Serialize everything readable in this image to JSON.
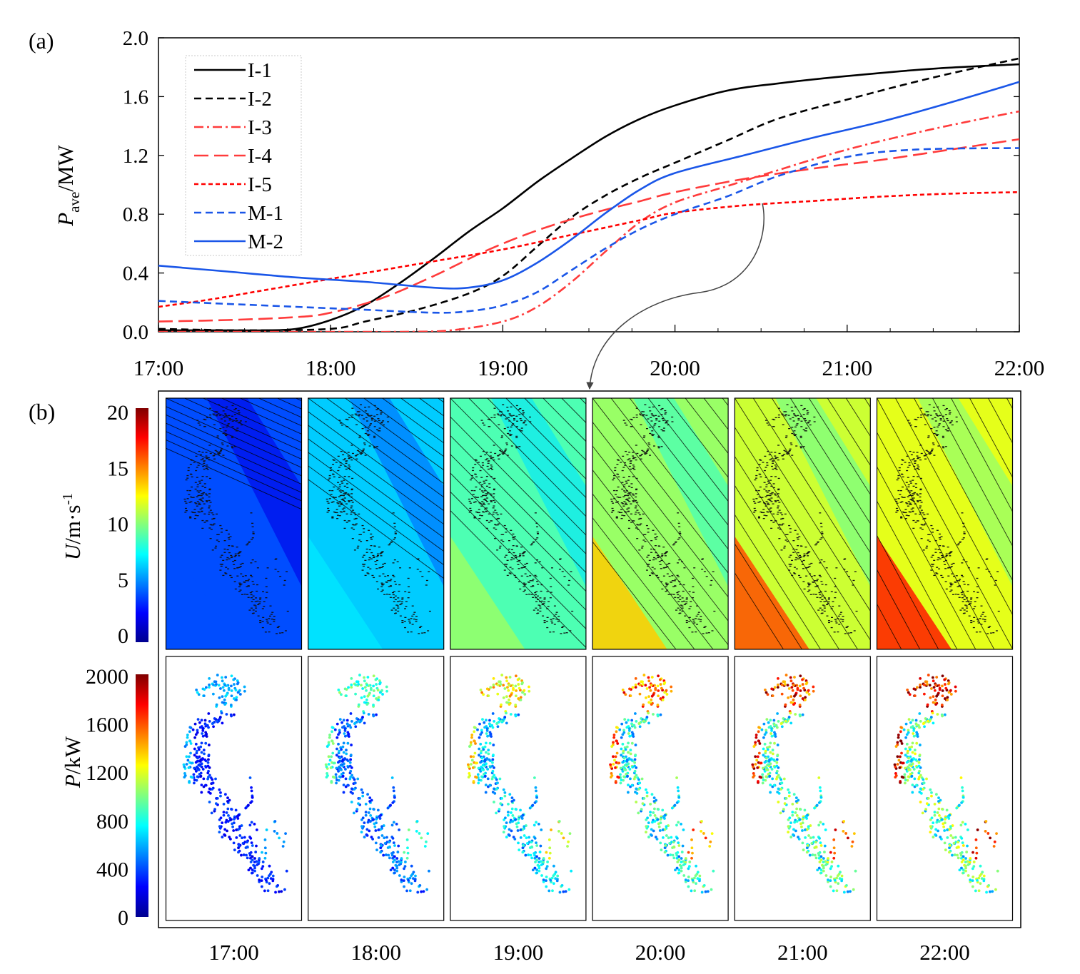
{
  "panel_labels": {
    "a": "(a)",
    "b": "(b)"
  },
  "chart_data": [
    {
      "type": "line",
      "panel": "(a)",
      "xlabel": "",
      "ylabel": "P",
      "ylabel_sub": "ave",
      "ylabel_unit": "/MW",
      "x_ticks": [
        "17:00",
        "18:00",
        "19:00",
        "20:00",
        "21:00",
        "22:00"
      ],
      "y_ticks": [
        "0.0",
        "0.4",
        "0.8",
        "1.2",
        "1.6",
        "2.0"
      ],
      "xlim": [
        17,
        22
      ],
      "ylim": [
        0,
        2.0
      ],
      "x_minor_step": 0.25,
      "legend_position": "top-left",
      "series": [
        {
          "name": "I-1",
          "color": "#000000",
          "dash": "solid",
          "points": [
            [
              17,
              0.01
            ],
            [
              17.4,
              0.01
            ],
            [
              17.6,
              0.01
            ],
            [
              17.8,
              0.02
            ],
            [
              18.0,
              0.08
            ],
            [
              18.2,
              0.18
            ],
            [
              18.4,
              0.33
            ],
            [
              18.6,
              0.5
            ],
            [
              18.8,
              0.68
            ],
            [
              19.0,
              0.84
            ],
            [
              19.2,
              1.02
            ],
            [
              19.4,
              1.18
            ],
            [
              19.6,
              1.33
            ],
            [
              19.8,
              1.45
            ],
            [
              20.0,
              1.54
            ],
            [
              20.3,
              1.64
            ],
            [
              20.6,
              1.69
            ],
            [
              21.0,
              1.74
            ],
            [
              21.5,
              1.79
            ],
            [
              22.0,
              1.82
            ]
          ]
        },
        {
          "name": "I-2",
          "color": "#000000",
          "dash": "dashed",
          "points": [
            [
              17,
              0.02
            ],
            [
              17.5,
              0.01
            ],
            [
              18.0,
              0.02
            ],
            [
              18.2,
              0.07
            ],
            [
              18.5,
              0.15
            ],
            [
              18.8,
              0.26
            ],
            [
              19.0,
              0.38
            ],
            [
              19.2,
              0.58
            ],
            [
              19.4,
              0.78
            ],
            [
              19.6,
              0.93
            ],
            [
              19.8,
              1.05
            ],
            [
              20.0,
              1.15
            ],
            [
              20.3,
              1.3
            ],
            [
              20.6,
              1.45
            ],
            [
              21.0,
              1.58
            ],
            [
              21.5,
              1.73
            ],
            [
              22.0,
              1.86
            ]
          ]
        },
        {
          "name": "I-3",
          "color": "#ff3b3b",
          "dash": "dashdot",
          "points": [
            [
              17,
              0.0
            ],
            [
              18.0,
              0.0
            ],
            [
              18.4,
              0.0
            ],
            [
              18.7,
              0.01
            ],
            [
              19.0,
              0.07
            ],
            [
              19.2,
              0.17
            ],
            [
              19.4,
              0.34
            ],
            [
              19.6,
              0.55
            ],
            [
              19.8,
              0.75
            ],
            [
              20.0,
              0.88
            ],
            [
              20.3,
              0.99
            ],
            [
              20.6,
              1.1
            ],
            [
              21.0,
              1.24
            ],
            [
              21.5,
              1.38
            ],
            [
              22.0,
              1.5
            ]
          ]
        },
        {
          "name": "I-4",
          "color": "#ff3b3b",
          "dash": "longdash",
          "points": [
            [
              17,
              0.07
            ],
            [
              17.4,
              0.08
            ],
            [
              17.8,
              0.1
            ],
            [
              18.0,
              0.13
            ],
            [
              18.3,
              0.23
            ],
            [
              18.6,
              0.38
            ],
            [
              18.9,
              0.55
            ],
            [
              19.2,
              0.69
            ],
            [
              19.5,
              0.8
            ],
            [
              19.8,
              0.89
            ],
            [
              20.0,
              0.95
            ],
            [
              20.4,
              1.04
            ],
            [
              20.8,
              1.11
            ],
            [
              21.2,
              1.17
            ],
            [
              21.6,
              1.24
            ],
            [
              22.0,
              1.31
            ]
          ]
        },
        {
          "name": "I-5",
          "color": "#ff0000",
          "dash": "shortdash",
          "points": [
            [
              17,
              0.17
            ],
            [
              17.3,
              0.22
            ],
            [
              17.6,
              0.28
            ],
            [
              18.0,
              0.36
            ],
            [
              18.3,
              0.42
            ],
            [
              18.6,
              0.48
            ],
            [
              19.0,
              0.56
            ],
            [
              19.4,
              0.66
            ],
            [
              19.8,
              0.76
            ],
            [
              20.0,
              0.81
            ],
            [
              20.4,
              0.86
            ],
            [
              20.8,
              0.89
            ],
            [
              21.2,
              0.92
            ],
            [
              21.6,
              0.94
            ],
            [
              22.0,
              0.95
            ]
          ]
        },
        {
          "name": "M-1",
          "color": "#1a56e8",
          "dash": "dashed",
          "points": [
            [
              17,
              0.21
            ],
            [
              17.4,
              0.19
            ],
            [
              17.8,
              0.17
            ],
            [
              18.2,
              0.15
            ],
            [
              18.6,
              0.13
            ],
            [
              18.8,
              0.14
            ],
            [
              19.0,
              0.18
            ],
            [
              19.2,
              0.27
            ],
            [
              19.4,
              0.42
            ],
            [
              19.6,
              0.57
            ],
            [
              19.8,
              0.7
            ],
            [
              20.0,
              0.8
            ],
            [
              20.3,
              0.92
            ],
            [
              20.6,
              1.06
            ],
            [
              21.0,
              1.19
            ],
            [
              21.4,
              1.24
            ],
            [
              22.0,
              1.25
            ]
          ]
        },
        {
          "name": "M-2",
          "color": "#1a56e8",
          "dash": "solid",
          "points": [
            [
              17,
              0.45
            ],
            [
              17.4,
              0.41
            ],
            [
              17.8,
              0.37
            ],
            [
              18.2,
              0.34
            ],
            [
              18.6,
              0.3
            ],
            [
              18.8,
              0.3
            ],
            [
              19.0,
              0.35
            ],
            [
              19.2,
              0.47
            ],
            [
              19.4,
              0.63
            ],
            [
              19.6,
              0.81
            ],
            [
              19.8,
              0.97
            ],
            [
              20.0,
              1.08
            ],
            [
              20.4,
              1.2
            ],
            [
              20.8,
              1.32
            ],
            [
              21.2,
              1.43
            ],
            [
              21.6,
              1.56
            ],
            [
              22.0,
              1.7
            ]
          ]
        }
      ]
    },
    {
      "type": "heatmap",
      "panel": "(b) wind speed",
      "colorbar_label": "U",
      "colorbar_unit": "/m·s",
      "colorbar_unit_sup": "-1",
      "colorbar_ticks": [
        "0",
        "5",
        "10",
        "15",
        "20"
      ],
      "colorbar_range": [
        0,
        20
      ],
      "times": [
        "17:00",
        "18:00",
        "19:00",
        "20:00",
        "21:00",
        "22:00"
      ],
      "panel_mean_speed": [
        4.0,
        6.5,
        9.0,
        10.5,
        11.5,
        12.0
      ],
      "lower_left_peak_speed": [
        4.0,
        7.0,
        10.5,
        13.5,
        16.0,
        17.0
      ]
    },
    {
      "type": "scatter",
      "panel": "(b) turbine power",
      "colorbar_label": "P",
      "colorbar_unit": "/kW",
      "colorbar_ticks": [
        "0",
        "400",
        "800",
        "1200",
        "1600",
        "2000"
      ],
      "colorbar_range": [
        0,
        2000
      ],
      "times": [
        "17:00",
        "18:00",
        "19:00",
        "20:00",
        "21:00",
        "22:00"
      ],
      "mean_power_kW": [
        320,
        480,
        680,
        820,
        900,
        960
      ]
    }
  ],
  "connector": {
    "from_time": "20:30",
    "to_panel": "20:00"
  },
  "colors": {
    "axis": "#000000",
    "legend_border": "#c8c8c8",
    "connector": "#444444"
  }
}
